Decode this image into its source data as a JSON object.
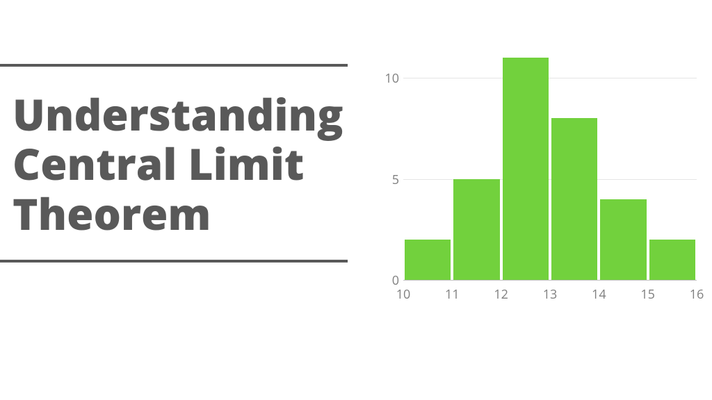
{
  "title": {
    "text": "Understanding Central Limit Theorem",
    "color": "#595959",
    "fontsize": 62,
    "rule_color": "#595959",
    "rule_thickness": 4
  },
  "histogram": {
    "type": "histogram",
    "bin_edges": [
      10,
      11,
      12,
      13,
      14,
      15,
      16
    ],
    "values": [
      2,
      5,
      11,
      8,
      4,
      2
    ],
    "bar_color": "#72d13d",
    "bar_gap_ratio": 0.06,
    "xlim": [
      10,
      16
    ],
    "ylim": [
      0,
      11
    ],
    "xticks": [
      10,
      11,
      12,
      13,
      14,
      15,
      16
    ],
    "yticks": [
      0,
      5,
      10
    ],
    "gridline_color": "#e5e5e5",
    "axis_line_color": "#bfbfbf",
    "tick_label_color": "#808080",
    "tick_fontsize": 18,
    "background_color": "#ffffff"
  }
}
